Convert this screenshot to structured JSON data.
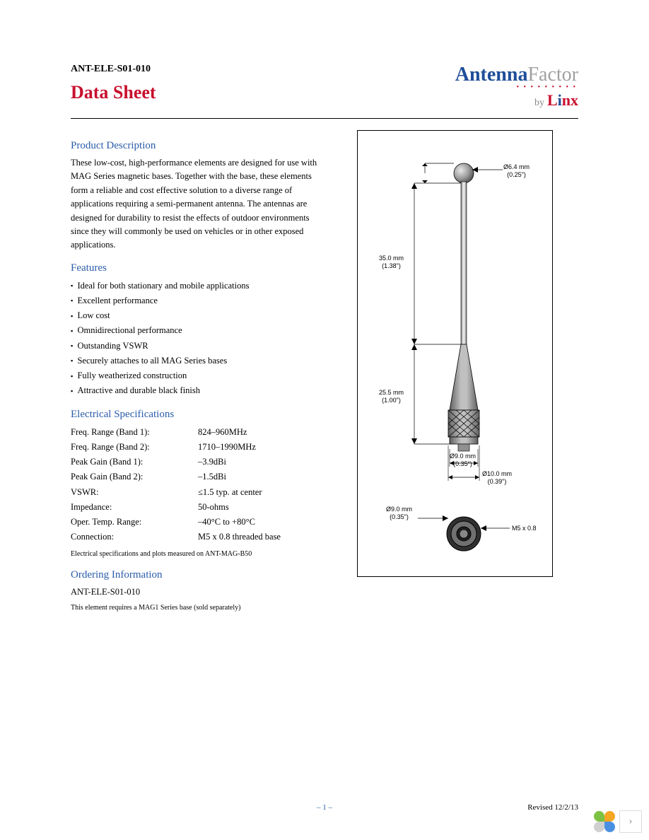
{
  "header": {
    "part_number": "ANT-ELE-S01-010",
    "doc_title": "Data Sheet",
    "logo": {
      "word1": "Antenna",
      "word2": "Factor",
      "by": "by",
      "brand": "Linx"
    }
  },
  "product_description": {
    "title": "Product Description",
    "body": "These low-cost, high-performance elements are designed for use with MAG Series magnetic bases. Together with the base, these elements form a reliable and cost effective solution to a diverse range of applications requiring a semi-permanent antenna. The antennas are designed for durability to resist the effects of outdoor environments since they will commonly be used on vehicles or in other exposed applications."
  },
  "features": {
    "title": "Features",
    "items": [
      "Ideal for both stationary and mobile applications",
      "Excellent performance",
      "Low cost",
      "Omnidirectional performance",
      "Outstanding VSWR",
      "Securely attaches to all MAG Series bases",
      "Fully weatherized construction",
      "Attractive and durable black finish"
    ]
  },
  "electrical": {
    "title": "Electrical Specifications",
    "rows": [
      {
        "label": "Freq. Range (Band 1):",
        "value": "824–960MHz"
      },
      {
        "label": "Freq. Range (Band 2):",
        "value": "1710–1990MHz"
      },
      {
        "label": "Peak Gain (Band 1):",
        "value": "–3.9dBi"
      },
      {
        "label": "Peak Gain (Band 2):",
        "value": "–1.5dBi"
      },
      {
        "label": "VSWR:",
        "value": "≤1.5 typ. at center"
      },
      {
        "label": "Impedance:",
        "value": "50-ohms"
      },
      {
        "label": "Oper. Temp. Range:",
        "value": "–40°C to +80°C"
      },
      {
        "label": "Connection:",
        "value": "M5 x 0.8 threaded base"
      }
    ],
    "note": "Electrical specifications and plots measured on ANT-MAG-B50"
  },
  "ordering": {
    "title": "Ordering Information",
    "part": "ANT-ELE-S01-010",
    "note": "This element requires a MAG1 Series base (sold separately)"
  },
  "diagram": {
    "ball_dia": {
      "mm": "Ø6.4 mm",
      "in": "(0.25\")"
    },
    "whip_len": {
      "mm": "35.0 mm",
      "in": "(1.38\")"
    },
    "body_len": {
      "mm": "25.5 mm",
      "in": "(1.00\")"
    },
    "top_dia": {
      "mm": "Ø9.0 mm",
      "in": "(0.35\")"
    },
    "base_dia": {
      "mm": "Ø10.0 mm",
      "in": "(0.39\")"
    },
    "bottom_dia": {
      "mm": "Ø9.0 mm",
      "in": "(0.35\")"
    },
    "thread": "M5 x 0.8",
    "colors": {
      "metal_light": "#c8c8c8",
      "metal_mid": "#a0a0a0",
      "metal_dark": "#707070",
      "stroke": "#000000"
    }
  },
  "footer": {
    "page": "– 1 –",
    "revised": "Revised 12/2/13"
  },
  "corner": {
    "petal_colors": [
      "#7cc142",
      "#f5a623",
      "#d0d0d0",
      "#4a90e2"
    ]
  }
}
